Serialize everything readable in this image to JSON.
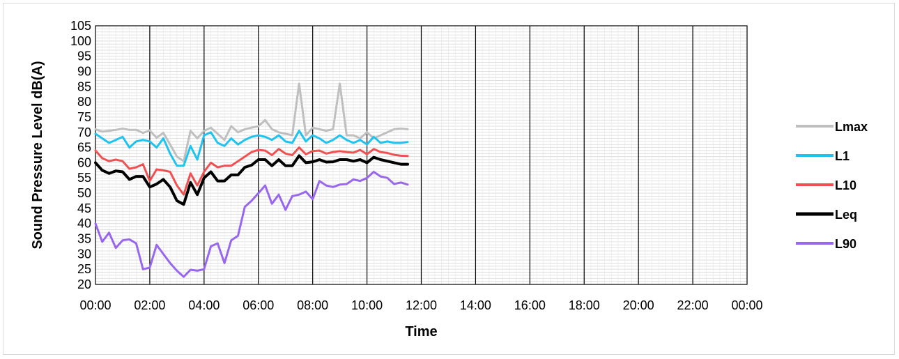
{
  "chart_data": {
    "type": "line",
    "title": "",
    "xlabel": "Time",
    "ylabel": "Sound Pressure Level dB(A)",
    "ylim": [
      20,
      105
    ],
    "y_ticks": [
      "20",
      "25",
      "30",
      "35",
      "40",
      "45",
      "50",
      "55",
      "60",
      "65",
      "70",
      "75",
      "80",
      "85",
      "90",
      "95",
      "100",
      "105"
    ],
    "x_tick_labels": [
      "00:00",
      "02:00",
      "04:00",
      "06:00",
      "08:00",
      "10:00",
      "12:00",
      "14:00",
      "16:00",
      "18:00",
      "20:00",
      "22:00",
      "00:00"
    ],
    "x_unit": "hours",
    "xlim": [
      0,
      24
    ],
    "grid": "horizontal minor every 1 dB, vertical major every 2 hours",
    "legend_position": "right",
    "x": [
      0,
      0.25,
      0.5,
      0.75,
      1,
      1.25,
      1.5,
      1.75,
      2,
      2.25,
      2.5,
      2.75,
      3,
      3.25,
      3.5,
      3.75,
      4,
      4.25,
      4.5,
      4.75,
      5,
      5.25,
      5.5,
      5.75,
      6,
      6.25,
      6.5,
      6.75,
      7,
      7.25,
      7.5,
      7.75,
      8,
      8.25,
      8.5,
      8.75,
      9,
      9.25,
      9.5,
      9.75,
      10,
      10.25,
      10.5,
      10.75,
      11,
      11.25,
      11.5
    ],
    "series": [
      {
        "name": "Lmax",
        "color": "#bfbfbf",
        "width": 3,
        "values": [
          71,
          70.2,
          70.5,
          70.8,
          71.2,
          70.8,
          70.8,
          69.8,
          70.6,
          68.2,
          69.8,
          66,
          62,
          60.5,
          70.5,
          68,
          70.5,
          71.5,
          69.5,
          67.5,
          72,
          70,
          71,
          71.5,
          72,
          74,
          71,
          70,
          69.5,
          69,
          86,
          69,
          71.5,
          71,
          70.5,
          71,
          86,
          69,
          69,
          68,
          70,
          68,
          69,
          70,
          71,
          71.2,
          71
        ]
      },
      {
        "name": "L1",
        "color": "#1fc3f0",
        "width": 3,
        "values": [
          69.5,
          68,
          66.5,
          67.5,
          68.5,
          65,
          67,
          67.5,
          67,
          65,
          68,
          63,
          59,
          59,
          65.5,
          61,
          69,
          70,
          66.5,
          65.5,
          68,
          66,
          67.5,
          68.5,
          69,
          68.5,
          67.5,
          69,
          67,
          66.5,
          70.5,
          67,
          69,
          68,
          66.5,
          67.5,
          69,
          67.5,
          66.5,
          67.5,
          66,
          68.5,
          66.5,
          67,
          66.5,
          66.5,
          66.8
        ]
      },
      {
        "name": "L10",
        "color": "#f05050",
        "width": 3,
        "values": [
          64,
          61.5,
          60.5,
          61,
          60.5,
          58,
          58.5,
          59.5,
          54,
          57.8,
          57.5,
          57,
          52.5,
          49.5,
          56.5,
          52.5,
          57,
          60,
          58.5,
          59,
          59,
          60.5,
          62,
          63.5,
          64.2,
          64,
          62.5,
          64.5,
          63,
          62.5,
          65,
          62.8,
          63.8,
          64,
          63,
          63.5,
          63.8,
          63.5,
          63.3,
          64.2,
          62.8,
          64.5,
          63.5,
          63.2,
          62.6,
          62.3,
          62.2
        ]
      },
      {
        "name": "Leq",
        "color": "#000000",
        "width": 4,
        "values": [
          60,
          57.5,
          56.5,
          57.3,
          57,
          54.5,
          55.5,
          55.5,
          52,
          53,
          54.5,
          52,
          47.5,
          46.3,
          53.5,
          49.5,
          55,
          57,
          54,
          54,
          56,
          56,
          58.5,
          59.2,
          61,
          61,
          59,
          61,
          59,
          59,
          62.3,
          60,
          60.3,
          61,
          60.2,
          60.3,
          61,
          61,
          60.5,
          61,
          60,
          61.8,
          61,
          60.5,
          60,
          59.5,
          59.5
        ]
      },
      {
        "name": "L90",
        "color": "#9966ee",
        "width": 3,
        "values": [
          40,
          34,
          37,
          32,
          34.5,
          34.8,
          33.5,
          25,
          25.5,
          33,
          30,
          27,
          24.5,
          22.5,
          24.8,
          24.5,
          25,
          32.5,
          33.5,
          27,
          34.5,
          36,
          45.5,
          47.5,
          50,
          52.5,
          46.5,
          49.5,
          44.5,
          49,
          49.5,
          50.5,
          48,
          54,
          52.5,
          52,
          52.8,
          53,
          54.5,
          54,
          55,
          57,
          55.5,
          55,
          53,
          53.5,
          52.8
        ]
      }
    ]
  }
}
